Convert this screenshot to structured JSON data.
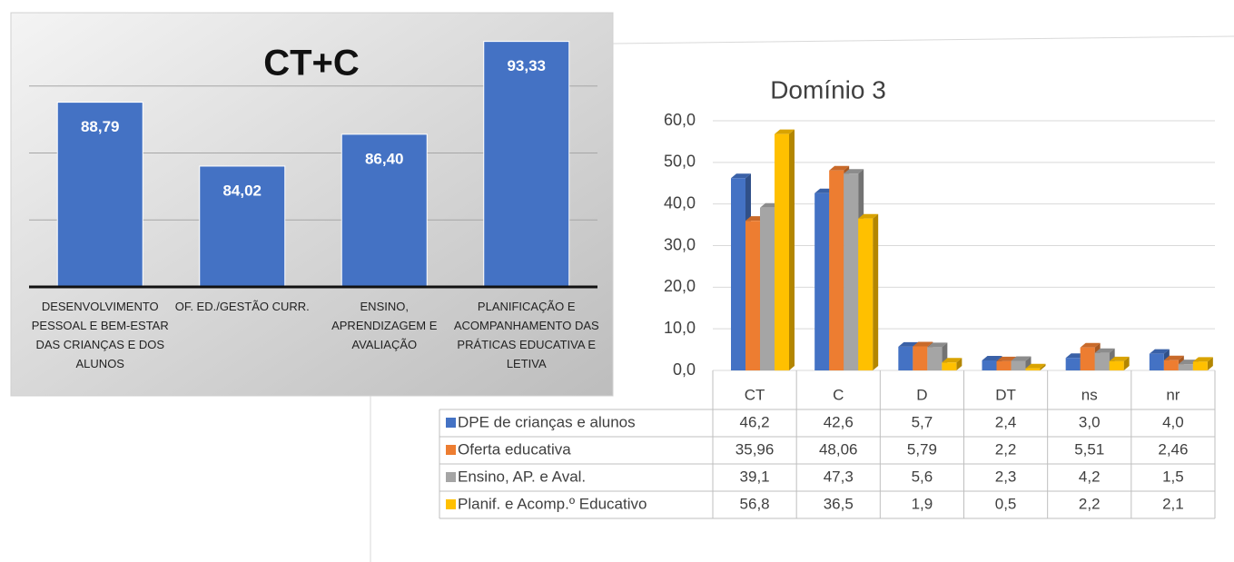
{
  "chart_data": [
    {
      "type": "bar",
      "title": "CT+C",
      "categories": [
        "DESENVOLVIMENTO PESSOAL E BEM-ESTAR DAS CRIANÇAS E DOS ALUNOS",
        "OF. ED./GESTÃO CURR.",
        "ENSINO, APRENDIZAGEM E AVALIAÇÃO",
        "PLANIFICAÇÃO E ACOMPANHAMENTO DAS PRÁTICAS EDUCATIVA E LETIVA"
      ],
      "values": [
        88.79,
        84.02,
        86.4,
        93.33
      ],
      "value_labels": [
        "88,79",
        "84,02",
        "86,40",
        "93,33"
      ],
      "color": "#4472c4",
      "ylim": [
        75,
        95
      ],
      "grid_lines": [
        80,
        85,
        90
      ]
    },
    {
      "type": "bar3d_table",
      "title": "Domínio 3",
      "categories": [
        "CT",
        "C",
        "D",
        "DT",
        "ns",
        "nr"
      ],
      "ylim": [
        0,
        60
      ],
      "yticks": [
        {
          "value": 0,
          "label": "0,0"
        },
        {
          "value": 10,
          "label": "10,0"
        },
        {
          "value": 20,
          "label": "20,0"
        },
        {
          "value": 30,
          "label": "30,0"
        },
        {
          "value": 40,
          "label": "40,0"
        },
        {
          "value": 50,
          "label": "50,0"
        },
        {
          "value": 60,
          "label": "60,0"
        }
      ],
      "grid": true,
      "series": [
        {
          "name": "DPE de crianças e alunos",
          "color": "#4472c4",
          "values": [
            46.2,
            42.6,
            5.7,
            2.4,
            3.0,
            4.0
          ],
          "value_labels": [
            "46,2",
            "42,6",
            "5,7",
            "2,4",
            "3,0",
            "4,0"
          ]
        },
        {
          "name": "Oferta educativa",
          "color": "#ed7d31",
          "values": [
            35.96,
            48.06,
            5.79,
            2.2,
            5.51,
            2.46
          ],
          "value_labels": [
            "35,96",
            "48,06",
            "5,79",
            "2,2",
            "5,51",
            "2,46"
          ]
        },
        {
          "name": "Ensino, AP. e Aval.",
          "color": "#a5a5a5",
          "values": [
            39.1,
            47.3,
            5.6,
            2.3,
            4.2,
            1.5
          ],
          "value_labels": [
            "39,1",
            "47,3",
            "5,6",
            "2,3",
            "4,2",
            "1,5"
          ]
        },
        {
          "name": "Planif. e Acomp.º Educativo",
          "color": "#ffc000",
          "values": [
            56.8,
            36.5,
            1.9,
            0.5,
            2.2,
            2.1
          ],
          "value_labels": [
            "56,8",
            "36,5",
            "1,9",
            "0,5",
            "2,2",
            "2,1"
          ]
        }
      ]
    }
  ]
}
